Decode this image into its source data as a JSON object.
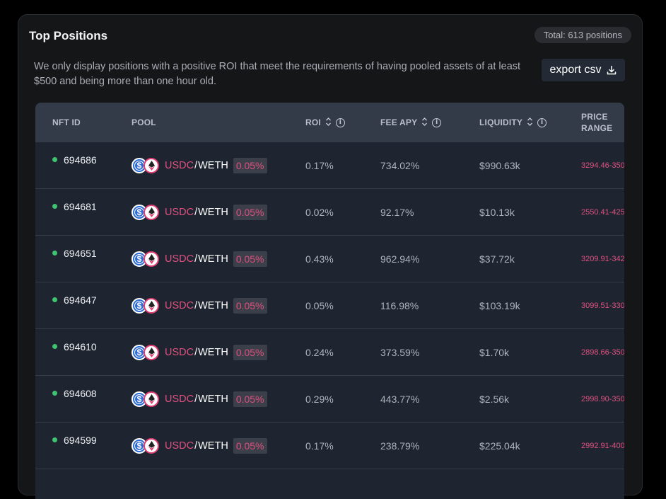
{
  "header": {
    "title": "Top Positions",
    "total": "Total: 613 positions"
  },
  "notice": "We only display positions with a positive ROI that meet the requirements of having pooled assets of at least $500 and being more than one hour old.",
  "export": {
    "label": "export csv",
    "icon": "download-icon"
  },
  "columns": {
    "nft_id": "NFT ID",
    "pool": "POOL",
    "roi": "ROI",
    "fee_apy": "FEE APY",
    "liquidity": "LIQUIDITY",
    "price_range_1": "PRICE",
    "price_range_2": "RANGE"
  },
  "colors": {
    "accent_pink": "#e0507f",
    "status_green": "#3fc46f",
    "usdc_blue": "#2b6bd3"
  },
  "rows": [
    {
      "id": "694686",
      "token0": "USDC",
      "token1": "WETH",
      "fee": "0.05%",
      "roi": "0.17%",
      "apy": "734.02%",
      "liquidity": "$990.63k",
      "range": "3294.46-350"
    },
    {
      "id": "694681",
      "token0": "USDC",
      "token1": "WETH",
      "fee": "0.05%",
      "roi": "0.02%",
      "apy": "92.17%",
      "liquidity": "$10.13k",
      "range": "2550.41-425"
    },
    {
      "id": "694651",
      "token0": "USDC",
      "token1": "WETH",
      "fee": "0.05%",
      "roi": "0.43%",
      "apy": "962.94%",
      "liquidity": "$37.72k",
      "range": "3209.91-342"
    },
    {
      "id": "694647",
      "token0": "USDC",
      "token1": "WETH",
      "fee": "0.05%",
      "roi": "0.05%",
      "apy": "116.98%",
      "liquidity": "$103.19k",
      "range": "3099.51-330"
    },
    {
      "id": "694610",
      "token0": "USDC",
      "token1": "WETH",
      "fee": "0.05%",
      "roi": "0.24%",
      "apy": "373.59%",
      "liquidity": "$1.70k",
      "range": "2898.66-350"
    },
    {
      "id": "694608",
      "token0": "USDC",
      "token1": "WETH",
      "fee": "0.05%",
      "roi": "0.29%",
      "apy": "443.77%",
      "liquidity": "$2.56k",
      "range": "2998.90-350"
    },
    {
      "id": "694599",
      "token0": "USDC",
      "token1": "WETH",
      "fee": "0.05%",
      "roi": "0.17%",
      "apy": "238.79%",
      "liquidity": "$225.04k",
      "range": "2992.91-400"
    }
  ]
}
